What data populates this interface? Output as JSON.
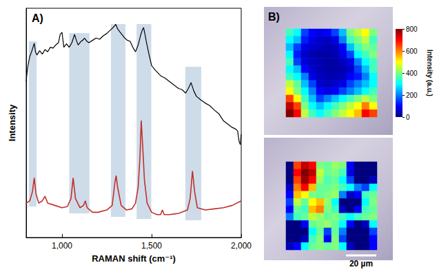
{
  "chart_data": [
    {
      "type": "line",
      "panel_label": "A)",
      "x_label": "RAMAN shift (cm⁻¹)",
      "y_label": "Intensity",
      "xlim": [
        800,
        2000
      ],
      "xticks": [
        1000,
        1500,
        2000
      ],
      "ylim": [
        0,
        100
      ],
      "tick_labels": "x",
      "grid": false,
      "highlight_bands": [
        {
          "x": [
            815,
            858
          ],
          "y": [
            13.5,
            85.6
          ]
        },
        {
          "x": [
            1040,
            1153
          ],
          "y": [
            10.5,
            89.2
          ]
        },
        {
          "x": [
            1273,
            1354
          ],
          "y": [
            9.0,
            93.1
          ]
        },
        {
          "x": [
            1416,
            1498
          ],
          "y": [
            8.1,
            93.1
          ]
        },
        {
          "x": [
            1688,
            1777
          ],
          "y": [
            7.5,
            74.5
          ]
        }
      ],
      "series": [
        {
          "color": "#000000",
          "x": [
            800,
            805,
            810,
            820,
            830,
            838,
            845,
            852,
            860,
            875,
            890,
            905,
            920,
            935,
            950,
            965,
            980,
            990,
            1000,
            1010,
            1025,
            1040,
            1055,
            1070,
            1080,
            1090,
            1105,
            1115,
            1125,
            1140,
            1150,
            1170,
            1190,
            1210,
            1230,
            1250,
            1270,
            1285,
            1300,
            1310,
            1320,
            1335,
            1350,
            1365,
            1380,
            1395,
            1410,
            1425,
            1440,
            1448,
            1455,
            1462,
            1470,
            1485,
            1500,
            1520,
            1550,
            1575,
            1600,
            1625,
            1650,
            1670,
            1690,
            1705,
            1720,
            1735,
            1750,
            1775,
            1800,
            1825,
            1850,
            1875,
            1900,
            1925,
            1950,
            1965,
            1980,
            1988,
            1995,
            2000
          ],
          "values": [
            68,
            72,
            75,
            79,
            81,
            83,
            84.7,
            81,
            79.6,
            81.5,
            80,
            82,
            81,
            83,
            82.6,
            84,
            85,
            88.6,
            89.5,
            83,
            84.5,
            83,
            85,
            88.6,
            86,
            84,
            85.5,
            86,
            87,
            85.5,
            85,
            86,
            87,
            86.5,
            88,
            89,
            90.5,
            91.6,
            93,
            91,
            90,
            88.5,
            87,
            86,
            85.6,
            83,
            81,
            84,
            88.6,
            90.5,
            91.6,
            89,
            85.6,
            80,
            75,
            73,
            70.6,
            69.5,
            68,
            66.5,
            65,
            64.5,
            63,
            65,
            67.6,
            64,
            61.6,
            60,
            58.6,
            57.5,
            55.6,
            54,
            51,
            49.5,
            48,
            47.5,
            46.5,
            42,
            40.5,
            45
          ]
        },
        {
          "color": "#c0302a",
          "x": [
            800,
            820,
            835,
            845,
            855,
            870,
            890,
            905,
            920,
            960,
            1000,
            1030,
            1050,
            1062,
            1075,
            1100,
            1120,
            1130,
            1140,
            1170,
            1200,
            1250,
            1280,
            1295,
            1302,
            1310,
            1330,
            1360,
            1390,
            1410,
            1425,
            1435,
            1442,
            1450,
            1460,
            1475,
            1500,
            1530,
            1550,
            1560,
            1570,
            1600,
            1650,
            1700,
            1715,
            1728,
            1740,
            1755,
            1800,
            1850,
            1900,
            1950,
            2000
          ],
          "values": [
            15,
            16,
            20,
            26,
            19,
            15,
            16,
            18,
            15,
            14,
            13,
            13.5,
            17,
            26,
            17,
            13,
            14,
            16,
            13,
            11,
            11,
            12,
            14,
            24,
            27,
            22,
            14,
            12,
            12.5,
            15,
            22,
            35,
            51,
            40,
            25,
            15,
            11,
            10,
            10,
            12,
            10,
            10,
            10.5,
            12,
            17,
            29,
            20,
            13,
            12,
            12.5,
            13,
            14,
            16
          ]
        }
      ]
    },
    {
      "type": "heatmap",
      "panel_label": "B)",
      "scale_bar": "20 µm",
      "colorbar": {
        "label": "Intensity (a.u.)",
        "range": [
          0,
          800
        ],
        "ticks": [
          0,
          200,
          400,
          600,
          800
        ]
      },
      "maps": [
        {
          "cells": [
            [
              350,
              300,
              150,
              100,
              80,
              100,
              150,
              250,
              400,
              450,
              500,
              400
            ],
            [
              300,
              250,
              120,
              80,
              60,
              50,
              80,
              200,
              350,
              400,
              450,
              350
            ],
            [
              250,
              150,
              80,
              60,
              50,
              40,
              50,
              100,
              250,
              350,
              400,
              380
            ],
            [
              300,
              120,
              60,
              40,
              30,
              30,
              40,
              80,
              150,
              300,
              350,
              400
            ],
            [
              350,
              150,
              70,
              50,
              40,
              30,
              30,
              50,
              80,
              200,
              300,
              350
            ],
            [
              300,
              250,
              100,
              60,
              40,
              30,
              30,
              40,
              60,
              150,
              250,
              350
            ],
            [
              350,
              300,
              200,
              80,
              50,
              40,
              40,
              50,
              100,
              120,
              200,
              300
            ],
            [
              450,
              380,
              250,
              150,
              60,
              50,
              60,
              80,
              150,
              200,
              250,
              300
            ],
            [
              500,
              400,
              300,
              200,
              100,
              80,
              100,
              150,
              200,
              250,
              300,
              350
            ],
            [
              650,
              500,
              350,
              250,
              150,
              200,
              250,
              300,
              350,
              400,
              450,
              400
            ],
            [
              750,
              650,
              400,
              300,
              250,
              300,
              350,
              400,
              450,
              500,
              600,
              500
            ],
            [
              800,
              700,
              450,
              350,
              300,
              350,
              400,
              450,
              500,
              550,
              700,
              650
            ]
          ]
        },
        {
          "cells": [
            [
              0,
              650,
              750,
              700,
              400,
              380,
              420,
              400,
              100,
              0,
              0,
              0
            ],
            [
              0,
              700,
              800,
              750,
              450,
              380,
              400,
              350,
              80,
              0,
              0,
              0
            ],
            [
              0,
              650,
              780,
              700,
              420,
              360,
              380,
              300,
              150,
              0,
              0,
              50
            ],
            [
              50,
              600,
              700,
              550,
              380,
              380,
              400,
              350,
              300,
              200,
              150,
              300
            ],
            [
              100,
              550,
              500,
              400,
              380,
              400,
              420,
              200,
              50,
              100,
              350,
              380
            ],
            [
              150,
              450,
              380,
              500,
              550,
              420,
              300,
              0,
              0,
              0,
              300,
              400
            ],
            [
              100,
              380,
              350,
              550,
              600,
              400,
              350,
              50,
              0,
              100,
              350,
              380
            ],
            [
              200,
              350,
              380,
              450,
              420,
              380,
              400,
              350,
              300,
              350,
              380,
              400
            ],
            [
              0,
              0,
              100,
              380,
              400,
              420,
              380,
              300,
              100,
              0,
              50,
              300
            ],
            [
              0,
              0,
              0,
              300,
              380,
              150,
              380,
              200,
              0,
              0,
              0,
              150
            ],
            [
              0,
              0,
              50,
              350,
              400,
              100,
              400,
              150,
              0,
              0,
              0,
              100
            ],
            [
              50,
              100,
              300,
              380,
              400,
              380,
              400,
              300,
              50,
              0,
              0,
              100
            ]
          ]
        }
      ]
    }
  ]
}
